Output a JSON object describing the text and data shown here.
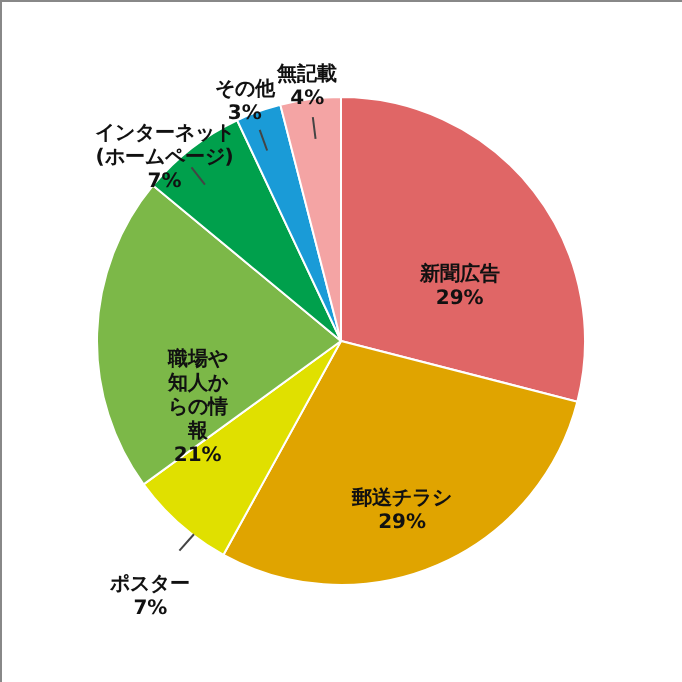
{
  "chart_data": {
    "type": "pie",
    "categories": [
      "新聞広告",
      "郵送チラシ",
      "ポスター",
      "職場や知人からの情報",
      "インターネット(ホームページ)",
      "その他",
      "無記載"
    ],
    "values": [
      29,
      29,
      7,
      21,
      7,
      3,
      4
    ],
    "value_labels": [
      "29%",
      "29%",
      "7%",
      "21%",
      "7%",
      "3%",
      "4%"
    ],
    "colors": [
      "#e06666",
      "#e0a400",
      "#e0e000",
      "#7cb848",
      "#00a04c",
      "#1a9bd7",
      "#f4a4a4"
    ]
  }
}
